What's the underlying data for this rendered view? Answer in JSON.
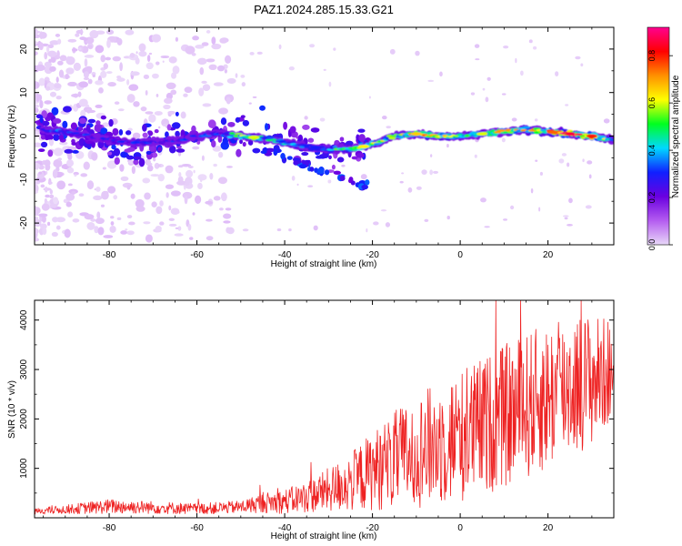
{
  "title": "PAZ1.2024.285.15.33.G21",
  "colors": {
    "snr_line": "#ee2222",
    "colorbar_stops": [
      "#e8d8f8",
      "#b45cf0",
      "#6a00e0",
      "#1020ff",
      "#00d8ff",
      "#00ff20",
      "#ffff00",
      "#ff9000",
      "#ff0000",
      "#ff0090"
    ]
  },
  "chart_data": [
    {
      "type": "heatmap",
      "xlabel": "Height of straight line (km)",
      "ylabel": "Frequency (Hz)",
      "xlim": [
        -97,
        35
      ],
      "ylim": [
        -25,
        25
      ],
      "xticks": [
        -80,
        -60,
        -40,
        -20,
        0,
        20
      ],
      "yticks": [
        -20,
        -10,
        0,
        10,
        20
      ],
      "grid": false,
      "colorbar": {
        "label": "Normalized spectral amplitude",
        "range": [
          0,
          0.92
        ],
        "ticks": [
          "0.0",
          "0.2",
          "0.4",
          "0.6",
          "0.8"
        ]
      },
      "ridge": {
        "x": [
          -95,
          -90,
          -85,
          -80,
          -75,
          -70,
          -65,
          -60,
          -55,
          -50,
          -45,
          -40,
          -35,
          -30,
          -25,
          -20,
          -15,
          -10,
          -5,
          0,
          5,
          10,
          15,
          20,
          25,
          30,
          35
        ],
        "f": [
          1.5,
          1,
          0,
          -1,
          -1.5,
          -1.5,
          -1,
          0,
          0.5,
          0,
          -0.5,
          -1.5,
          -2.5,
          -3,
          -3,
          -2,
          0,
          0.5,
          0,
          0,
          0.5,
          1,
          1.5,
          1,
          0.5,
          0,
          -1
        ],
        "amp": [
          0.3,
          0.35,
          0.3,
          0.28,
          0.3,
          0.28,
          0.28,
          0.3,
          0.35,
          0.55,
          0.5,
          0.42,
          0.35,
          0.45,
          0.55,
          0.58,
          0.55,
          0.68,
          0.65,
          0.58,
          0.6,
          0.68,
          0.62,
          0.72,
          0.85,
          0.8,
          0.45
        ]
      }
    },
    {
      "type": "line",
      "xlabel": "Height of straight line (km)",
      "ylabel": "SNR (10 * v/v)",
      "xlim": [
        -97,
        35
      ],
      "ylim": [
        0,
        4400
      ],
      "xticks": [
        -80,
        -60,
        -40,
        -20,
        0,
        20
      ],
      "yticks": [
        1000,
        2000,
        3000,
        4000
      ],
      "grid": false,
      "series": [
        {
          "envelope_x": [
            -97,
            -90,
            -80,
            -70,
            -60,
            -50,
            -45,
            -40,
            -35,
            -30,
            -25,
            -20,
            -15,
            -10,
            -5,
            0,
            5,
            10,
            15,
            20,
            25,
            30,
            35
          ],
          "envelope_mean": [
            130,
            170,
            230,
            210,
            180,
            220,
            300,
            330,
            420,
            560,
            720,
            950,
            1150,
            1350,
            1500,
            1650,
            1850,
            2050,
            2250,
            2450,
            2700,
            2800,
            3000
          ],
          "envelope_amp": [
            60,
            90,
            150,
            130,
            110,
            130,
            200,
            250,
            320,
            450,
            600,
            800,
            1000,
            1150,
            1250,
            1350,
            1400,
            1450,
            1500,
            1500,
            1450,
            1350,
            1000
          ]
        }
      ]
    }
  ]
}
